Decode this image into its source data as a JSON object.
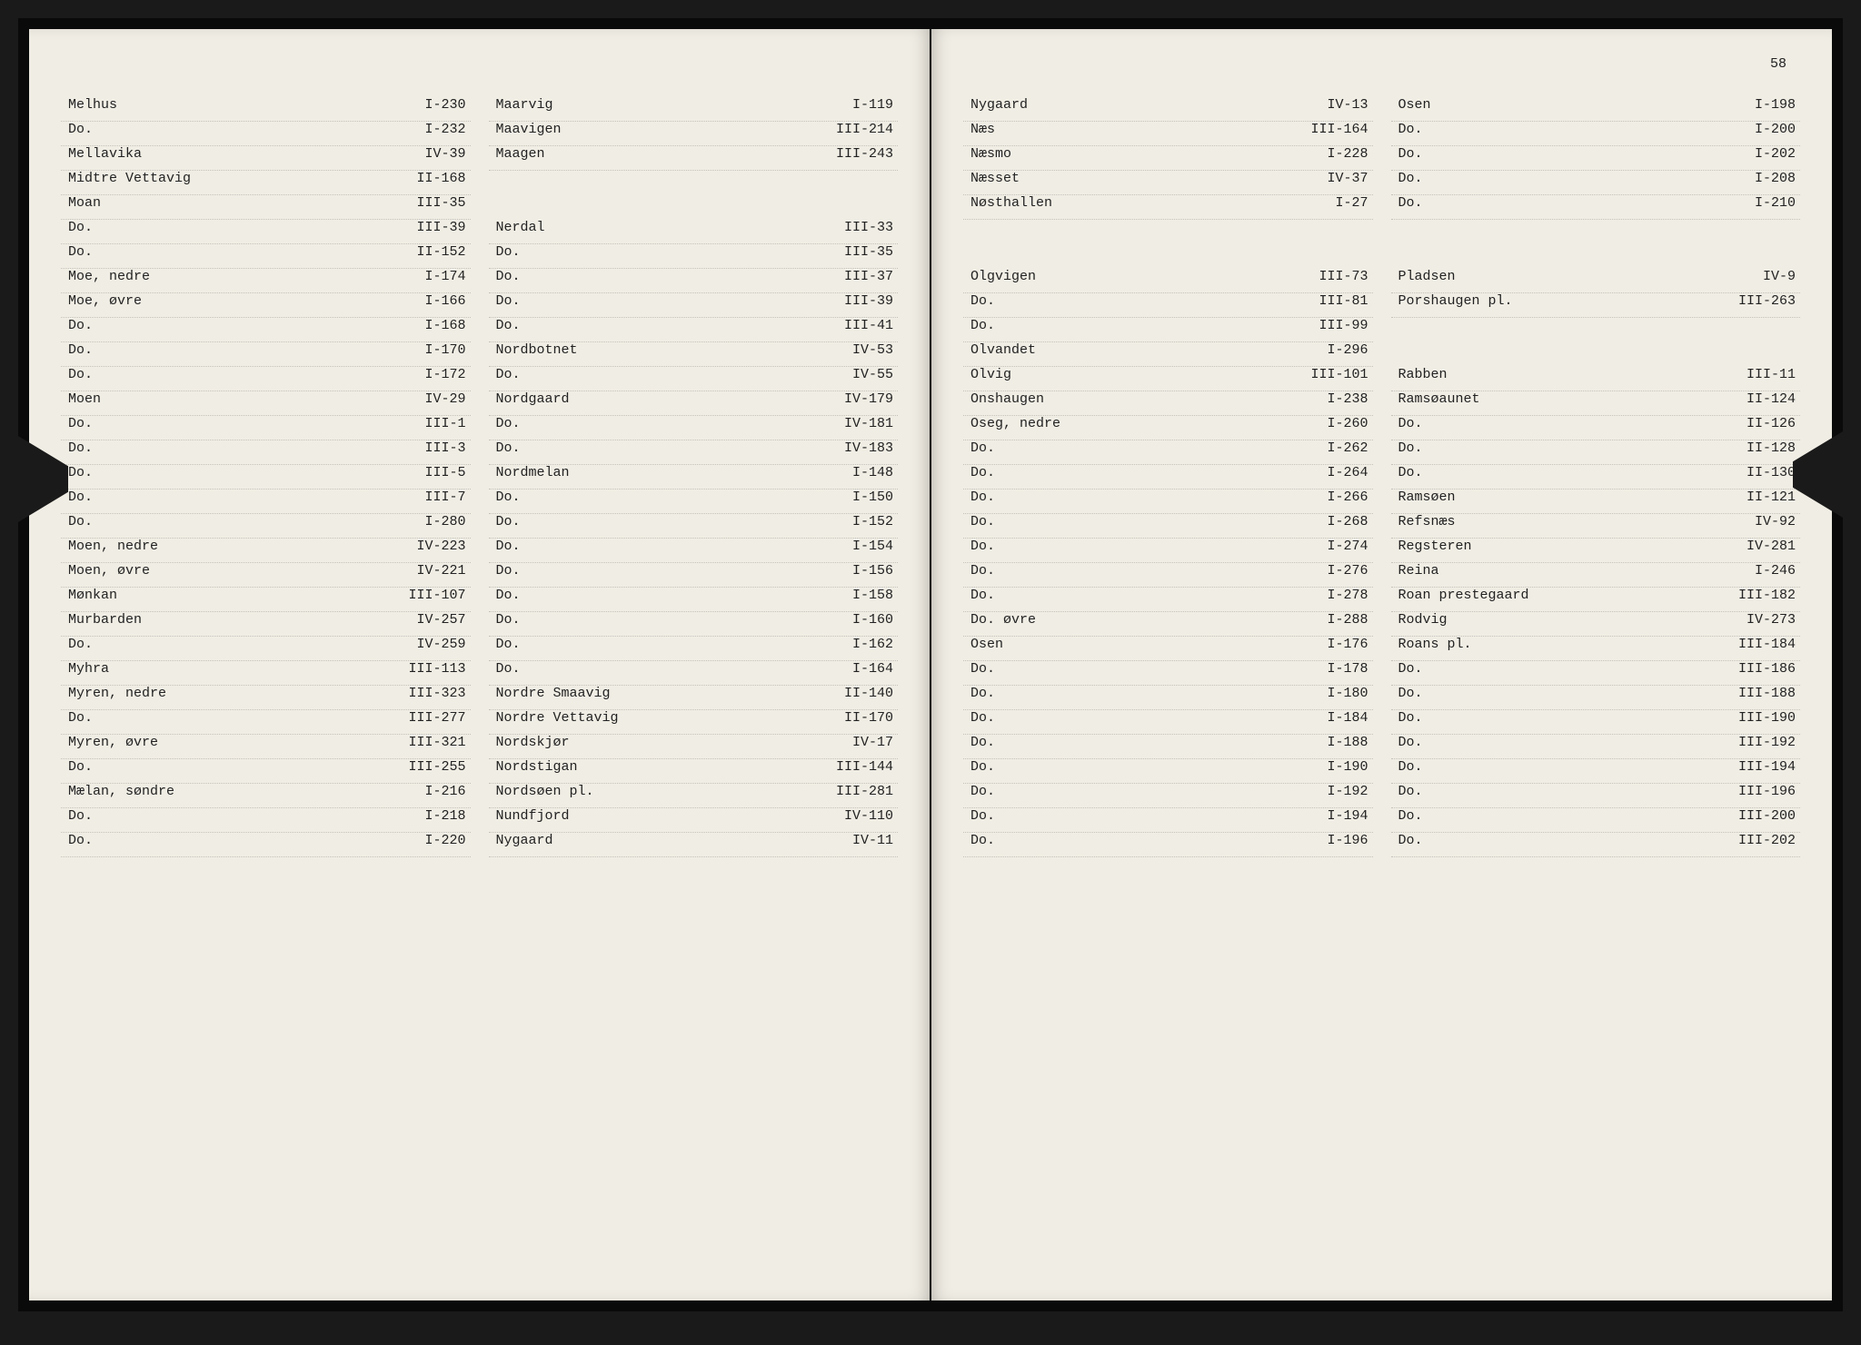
{
  "pageNumber": "58",
  "leftPage": {
    "col1": [
      {
        "name": "Melhus",
        "ref": "I-230"
      },
      {
        "name": "Do.",
        "ref": "I-232"
      },
      {
        "name": "Mellavika",
        "ref": "IV-39"
      },
      {
        "name": "Midtre Vettavig",
        "ref": "II-168"
      },
      {
        "name": "Moan",
        "ref": "III-35"
      },
      {
        "name": "Do.",
        "ref": "III-39"
      },
      {
        "name": "Do.",
        "ref": "II-152"
      },
      {
        "name": "Moe, nedre",
        "ref": "I-174"
      },
      {
        "name": "Moe, øvre",
        "ref": "I-166"
      },
      {
        "name": "Do.",
        "ref": "I-168"
      },
      {
        "name": "Do.",
        "ref": "I-170"
      },
      {
        "name": "Do.",
        "ref": "I-172"
      },
      {
        "name": "Moen",
        "ref": "IV-29"
      },
      {
        "name": "Do.",
        "ref": "III-1"
      },
      {
        "name": "Do.",
        "ref": "III-3"
      },
      {
        "name": "Do.",
        "ref": "III-5"
      },
      {
        "name": "Do.",
        "ref": "III-7"
      },
      {
        "name": "Do.",
        "ref": "I-280"
      },
      {
        "name": "Moen, nedre",
        "ref": "IV-223"
      },
      {
        "name": "Moen, øvre",
        "ref": "IV-221"
      },
      {
        "name": "Mønkan",
        "ref": "III-107"
      },
      {
        "name": "Murbarden",
        "ref": "IV-257"
      },
      {
        "name": "Do.",
        "ref": "IV-259"
      },
      {
        "name": "Myhra",
        "ref": "III-113"
      },
      {
        "name": "Myren, nedre",
        "ref": "III-323"
      },
      {
        "name": "Do.",
        "ref": "III-277"
      },
      {
        "name": "Myren, øvre",
        "ref": "III-321"
      },
      {
        "name": "Do.",
        "ref": "III-255"
      },
      {
        "name": "Mælan, søndre",
        "ref": "I-216"
      },
      {
        "name": "Do.",
        "ref": "I-218"
      },
      {
        "name": "Do.",
        "ref": "I-220"
      }
    ],
    "col2": [
      {
        "name": "Maarvig",
        "ref": "I-119"
      },
      {
        "name": "Maavigen",
        "ref": "III-214"
      },
      {
        "name": "Maagen",
        "ref": "III-243"
      },
      {
        "spacer": true
      },
      {
        "spacer": true
      },
      {
        "name": "Nerdal",
        "ref": "III-33"
      },
      {
        "name": "Do.",
        "ref": "III-35"
      },
      {
        "name": "Do.",
        "ref": "III-37"
      },
      {
        "name": "Do.",
        "ref": "III-39"
      },
      {
        "name": "Do.",
        "ref": "III-41"
      },
      {
        "name": "Nordbotnet",
        "ref": "IV-53"
      },
      {
        "name": "Do.",
        "ref": "IV-55"
      },
      {
        "name": "Nordgaard",
        "ref": "IV-179"
      },
      {
        "name": "Do.",
        "ref": "IV-181"
      },
      {
        "name": "Do.",
        "ref": "IV-183"
      },
      {
        "name": "Nordmelan",
        "ref": "I-148"
      },
      {
        "name": "Do.",
        "ref": "I-150"
      },
      {
        "name": "Do.",
        "ref": "I-152"
      },
      {
        "name": "Do.",
        "ref": "I-154"
      },
      {
        "name": "Do.",
        "ref": "I-156"
      },
      {
        "name": "Do.",
        "ref": "I-158"
      },
      {
        "name": "Do.",
        "ref": "I-160"
      },
      {
        "name": "Do.",
        "ref": "I-162"
      },
      {
        "name": "Do.",
        "ref": "I-164"
      },
      {
        "name": "Nordre Smaavig",
        "ref": "II-140"
      },
      {
        "name": "Nordre Vettavig",
        "ref": "II-170"
      },
      {
        "name": "Nordskjør",
        "ref": "IV-17"
      },
      {
        "name": "Nordstigan",
        "ref": "III-144"
      },
      {
        "name": "Nordsøen pl.",
        "ref": "III-281"
      },
      {
        "name": "Nundfjord",
        "ref": "IV-110"
      },
      {
        "name": "Nygaard",
        "ref": "IV-11"
      }
    ]
  },
  "rightPage": {
    "col1": [
      {
        "name": "Nygaard",
        "ref": "IV-13"
      },
      {
        "name": "Næs",
        "ref": "III-164"
      },
      {
        "name": "Næsmo",
        "ref": "I-228"
      },
      {
        "name": "Næsset",
        "ref": "IV-37"
      },
      {
        "name": "Nøsthallen",
        "ref": "I-27"
      },
      {
        "spacer": true
      },
      {
        "spacer": true
      },
      {
        "name": "Olgvigen",
        "ref": "III-73"
      },
      {
        "name": "Do.",
        "ref": "III-81"
      },
      {
        "name": "Do.",
        "ref": "III-99"
      },
      {
        "name": "Olvandet",
        "ref": "I-296"
      },
      {
        "name": "Olvig",
        "ref": "III-101"
      },
      {
        "name": "Onshaugen",
        "ref": "I-238"
      },
      {
        "name": "Oseg, nedre",
        "ref": "I-260"
      },
      {
        "name": "Do.",
        "ref": "I-262"
      },
      {
        "name": "Do.",
        "ref": "I-264"
      },
      {
        "name": "Do.",
        "ref": "I-266"
      },
      {
        "name": "Do.",
        "ref": "I-268"
      },
      {
        "name": "Do.",
        "ref": "I-274"
      },
      {
        "name": "Do.",
        "ref": "I-276"
      },
      {
        "name": "Do.",
        "ref": "I-278"
      },
      {
        "name": "Do.  øvre",
        "ref": "I-288"
      },
      {
        "name": "Osen",
        "ref": "I-176"
      },
      {
        "name": "Do.",
        "ref": "I-178"
      },
      {
        "name": "Do.",
        "ref": "I-180"
      },
      {
        "name": "Do.",
        "ref": "I-184"
      },
      {
        "name": "Do.",
        "ref": "I-188"
      },
      {
        "name": "Do.",
        "ref": "I-190"
      },
      {
        "name": "Do.",
        "ref": "I-192"
      },
      {
        "name": "Do.",
        "ref": "I-194"
      },
      {
        "name": "Do.",
        "ref": "I-196"
      }
    ],
    "col2": [
      {
        "name": "Osen",
        "ref": "I-198"
      },
      {
        "name": "Do.",
        "ref": "I-200"
      },
      {
        "name": "Do.",
        "ref": "I-202"
      },
      {
        "name": "Do.",
        "ref": "I-208"
      },
      {
        "name": "Do.",
        "ref": "I-210"
      },
      {
        "spacer": true
      },
      {
        "spacer": true
      },
      {
        "name": "Pladsen",
        "ref": "IV-9"
      },
      {
        "name": "Porshaugen pl.",
        "ref": "III-263"
      },
      {
        "spacer": true
      },
      {
        "spacer": true
      },
      {
        "name": "Rabben",
        "ref": "III-11"
      },
      {
        "name": "Ramsøaunet",
        "ref": "II-124"
      },
      {
        "name": "Do.",
        "ref": "II-126"
      },
      {
        "name": "Do.",
        "ref": "II-128"
      },
      {
        "name": "Do.",
        "ref": "II-130"
      },
      {
        "name": "Ramsøen",
        "ref": "II-121"
      },
      {
        "name": "Refsnæs",
        "ref": "IV-92"
      },
      {
        "name": "Regsteren",
        "ref": "IV-281"
      },
      {
        "name": "Reina",
        "ref": "I-246"
      },
      {
        "name": "Roan prestegaard",
        "ref": "III-182"
      },
      {
        "name": "Rodvig",
        "ref": "IV-273"
      },
      {
        "name": "Roans pl.",
        "ref": "III-184"
      },
      {
        "name": "Do.",
        "ref": "III-186"
      },
      {
        "name": "Do.",
        "ref": "III-188"
      },
      {
        "name": "Do.",
        "ref": "III-190"
      },
      {
        "name": "Do.",
        "ref": "III-192"
      },
      {
        "name": "Do.",
        "ref": "III-194"
      },
      {
        "name": "Do.",
        "ref": "III-196"
      },
      {
        "name": "Do.",
        "ref": "III-200"
      },
      {
        "name": "Do.",
        "ref": "III-202"
      }
    ]
  }
}
